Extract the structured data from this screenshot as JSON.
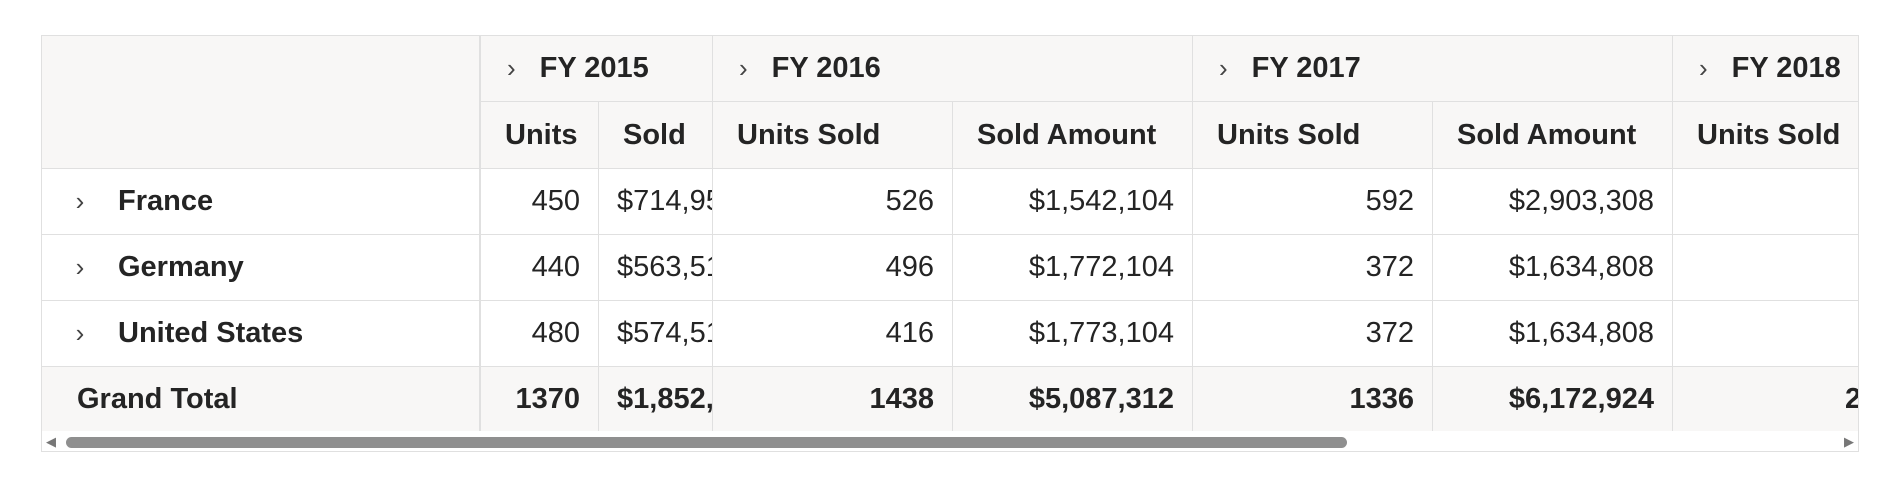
{
  "row_header": {
    "rows": [
      {
        "label": "France"
      },
      {
        "label": "Germany"
      },
      {
        "label": "United States"
      }
    ],
    "grand_total_label": "Grand Total"
  },
  "column_groups": [
    {
      "label": "FY 2015",
      "sub": [
        "Units",
        "Sold"
      ]
    },
    {
      "label": "FY 2016",
      "sub": [
        "Units Sold",
        "Sold Amount"
      ]
    },
    {
      "label": "FY 2017",
      "sub": [
        "Units Sold",
        "Sold Amount"
      ]
    },
    {
      "label": "FY 2018",
      "sub": [
        "Units Sold"
      ]
    }
  ],
  "cells": {
    "france": [
      "450",
      "$714,95",
      "526",
      "$1,542,104",
      "592",
      "$2,903,308",
      ""
    ],
    "germany": [
      "440",
      "$563,51",
      "496",
      "$1,772,104",
      "372",
      "$1,634,808",
      ""
    ],
    "united_states": [
      "480",
      "$574,51",
      "416",
      "$1,773,104",
      "372",
      "$1,634,808",
      ""
    ],
    "grand_total": [
      "1370",
      "$1,852,",
      "1438",
      "$5,087,312",
      "1336",
      "$6,172,924",
      "2"
    ]
  },
  "icons": {
    "expand": "chevron-right-icon",
    "scroll_left": "scroll-left-icon",
    "scroll_right": "scroll-right-icon"
  },
  "colors": {
    "header_bg": "#f8f7f6",
    "border": "#e0e0e0",
    "scrollbar_thumb": "#8f8f8f"
  }
}
